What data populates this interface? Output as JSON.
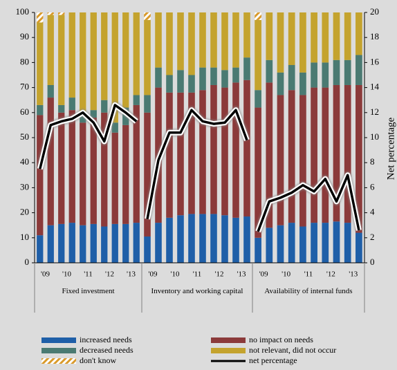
{
  "chart_data": {
    "type": "bar",
    "stacked": true,
    "ylim": [
      0,
      100
    ],
    "yticks": [
      0,
      10,
      20,
      30,
      40,
      50,
      60,
      70,
      80,
      90,
      100
    ],
    "y2lim": [
      0,
      20
    ],
    "y2ticks": [
      0,
      2,
      4,
      6,
      8,
      10,
      12,
      14,
      16,
      18,
      20
    ],
    "y2label": "Net percentage",
    "groups": [
      {
        "name": "Fixed investment",
        "categories": [
          "'09",
          "'10",
          "'11",
          "'12",
          "'13"
        ]
      },
      {
        "name": "Inventory and working capital",
        "categories": [
          "'09",
          "'10",
          "'11",
          "'12",
          "'13"
        ]
      },
      {
        "name": "Availability of internal funds",
        "categories": [
          "'09",
          "'10",
          "'11",
          "'12",
          "'13"
        ]
      }
    ],
    "series": [
      {
        "name": "increased needs",
        "color": "#1f5fa8",
        "values": [
          [
            11,
            15,
            15.5,
            16,
            15,
            15.5,
            14.5,
            15.5,
            15.5,
            16
          ],
          [
            10.5,
            16,
            18,
            19,
            19.5,
            19.5,
            19.5,
            19,
            18,
            18.5
          ],
          [
            10,
            14,
            15,
            16,
            14.5,
            16,
            16,
            16.5,
            16,
            12
          ]
        ]
      },
      {
        "name": "no impact on needs",
        "color": "#8b3a3a",
        "values": [
          [
            48,
            51,
            44.5,
            45,
            41,
            42.5,
            45.5,
            36.5,
            39.5,
            47
          ],
          [
            49.5,
            54,
            50,
            49,
            48.5,
            49.5,
            51.5,
            51,
            54,
            54.5
          ],
          [
            52,
            58,
            52,
            53,
            52.5,
            54,
            54,
            54.5,
            55,
            59
          ]
        ]
      },
      {
        "name": "decreased needs",
        "color": "#4a7a72",
        "values": [
          [
            4,
            5,
            3,
            5,
            4,
            3,
            5,
            4,
            7,
            4
          ],
          [
            7,
            8,
            7,
            9,
            7,
            9,
            7,
            7,
            6,
            9
          ],
          [
            7,
            9,
            9,
            10,
            9,
            10,
            10,
            10,
            10,
            12
          ]
        ]
      },
      {
        "name": "not relevant, did not occur",
        "color": "#c4a32e",
        "values": [
          [
            33,
            28,
            36,
            34,
            40,
            39,
            35,
            44,
            38,
            33
          ],
          [
            30,
            22,
            25,
            23,
            25,
            22,
            22,
            23,
            22,
            18
          ],
          [
            28,
            19,
            24,
            21,
            24,
            20,
            20,
            19,
            19,
            17
          ]
        ]
      },
      {
        "name": "don't know",
        "color": "#d99a2b",
        "pattern": "hatch",
        "values": [
          [
            4,
            1,
            1,
            0,
            0,
            0,
            0,
            0,
            0,
            0
          ],
          [
            3,
            0,
            0,
            0,
            0,
            0,
            0,
            0,
            0,
            0
          ],
          [
            3,
            0,
            0,
            0,
            0,
            0,
            0,
            0,
            0,
            0
          ]
        ]
      },
      {
        "name": "net percentage",
        "color": "#000000",
        "type": "line",
        "axis": "y2",
        "values": [
          [
            7.5,
            11,
            11.3,
            11.5,
            12,
            11.2,
            9.7,
            12.6,
            12,
            11.3
          ],
          [
            3.5,
            8.2,
            10.4,
            10.4,
            12.2,
            11.3,
            11.1,
            11.2,
            12.2,
            9.8
          ],
          [
            2.5,
            4.9,
            5.2,
            5.6,
            6.2,
            5.7,
            6.7,
            4.9,
            7,
            2.6
          ]
        ]
      }
    ]
  }
}
